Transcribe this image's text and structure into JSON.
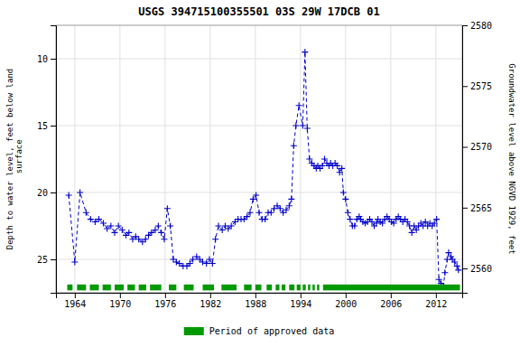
{
  "chart_data": {
    "type": "line",
    "title": "USGS 394715100355501 03S 29W 17DCB 01",
    "y_label": "Depth to water level, feet below land\n surface",
    "y2_label": "Groundwater level above NGVD 1929, feet",
    "xlim": [
      1961.5,
      2015.5
    ],
    "xticks": [
      1964,
      1970,
      1976,
      1982,
      1988,
      1994,
      2000,
      2006,
      2012
    ],
    "ylim": [
      27.5,
      7.5
    ],
    "yticks": [
      10,
      15,
      20,
      25
    ],
    "y2lim": [
      2558.0,
      2580.0
    ],
    "y2ticks": [
      2560,
      2565,
      2570,
      2575,
      2580
    ],
    "grid": true,
    "x": [
      1963.2,
      1964.0,
      1964.7,
      1965.5,
      1966.1,
      1966.7,
      1967.2,
      1967.8,
      1968.3,
      1968.8,
      1969.3,
      1969.8,
      1970.3,
      1970.8,
      1971.2,
      1971.7,
      1972.1,
      1972.5,
      1973.0,
      1973.4,
      1973.8,
      1974.2,
      1974.7,
      1975.1,
      1975.5,
      1975.9,
      1976.3,
      1976.7,
      1977.1,
      1977.5,
      1977.9,
      1978.4,
      1978.9,
      1979.3,
      1979.7,
      1980.2,
      1980.6,
      1981.0,
      1981.5,
      1981.9,
      1982.3,
      1982.7,
      1983.1,
      1983.6,
      1984.0,
      1984.4,
      1984.8,
      1985.3,
      1985.7,
      1986.1,
      1986.5,
      1986.9,
      1987.3,
      1987.7,
      1988.1,
      1988.5,
      1988.9,
      1989.3,
      1989.7,
      1990.1,
      1990.5,
      1990.9,
      1991.3,
      1991.7,
      1992.1,
      1992.5,
      1992.8,
      1993.1,
      1993.4,
      1993.8,
      1994.3,
      1994.6,
      1994.9,
      1995.2,
      1995.5,
      1995.8,
      1996.1,
      1996.3,
      1996.6,
      1996.9,
      1997.2,
      1997.5,
      1997.8,
      1998.0,
      1998.3,
      1998.6,
      1998.9,
      1999.2,
      1999.5,
      1999.7,
      2000.0,
      2000.3,
      2000.6,
      2000.9,
      2001.2,
      2001.5,
      2001.8,
      2002.0,
      2002.3,
      2002.6,
      2002.9,
      2003.2,
      2003.5,
      2003.8,
      2004.1,
      2004.3,
      2004.6,
      2004.9,
      2005.2,
      2005.5,
      2005.8,
      2006.1,
      2006.4,
      2006.7,
      2007.0,
      2007.3,
      2007.6,
      2007.9,
      2008.2,
      2008.5,
      2008.8,
      2009.1,
      2009.4,
      2009.7,
      2010.0,
      2010.3,
      2010.6,
      2010.9,
      2011.2,
      2011.5,
      2011.8,
      2012.1,
      2012.4,
      2012.7,
      2013.0,
      2013.2,
      2013.5,
      2013.7,
      2014.0,
      2014.2,
      2014.5,
      2014.8,
      2015.0
    ],
    "series": [
      {
        "color": "#0000cc",
        "marker": "plus",
        "line_style": "dashed",
        "values": [
          20.2,
          25.2,
          20.0,
          21.5,
          22.0,
          22.2,
          22.0,
          22.3,
          22.7,
          22.5,
          23.0,
          22.5,
          22.8,
          23.2,
          23.0,
          23.5,
          23.3,
          23.5,
          23.7,
          23.5,
          23.2,
          23.0,
          22.8,
          22.5,
          23.0,
          23.5,
          21.2,
          22.5,
          25.0,
          25.2,
          25.3,
          25.5,
          25.5,
          25.3,
          25.0,
          24.8,
          25.0,
          25.2,
          25.3,
          25.0,
          25.3,
          23.5,
          22.5,
          22.8,
          22.5,
          22.7,
          22.5,
          22.2,
          22.0,
          22.0,
          22.0,
          21.8,
          21.5,
          20.5,
          20.2,
          21.5,
          22.0,
          22.0,
          21.5,
          21.5,
          21.2,
          21.0,
          21.2,
          21.5,
          21.3,
          21.0,
          20.5,
          16.5,
          15.0,
          13.5,
          15.0,
          9.5,
          15.2,
          17.5,
          17.8,
          18.0,
          18.2,
          18.0,
          18.2,
          18.0,
          17.5,
          17.8,
          18.0,
          17.8,
          18.0,
          17.8,
          18.0,
          18.5,
          18.2,
          20.0,
          20.5,
          21.5,
          22.0,
          22.5,
          22.5,
          22.0,
          21.8,
          22.0,
          22.2,
          22.3,
          22.2,
          22.0,
          22.2,
          22.5,
          22.3,
          22.0,
          22.2,
          22.3,
          22.0,
          21.8,
          22.0,
          22.2,
          22.3,
          22.0,
          21.8,
          22.0,
          22.2,
          22.0,
          22.2,
          22.5,
          23.0,
          22.5,
          22.8,
          22.5,
          22.3,
          22.5,
          22.2,
          22.5,
          22.3,
          22.5,
          22.3,
          22.0,
          26.5,
          26.8,
          27.0,
          26.0,
          25.0,
          24.5,
          24.8,
          25.0,
          25.2,
          25.5,
          25.8
        ]
      },
      {
        "name": "Period of approved data",
        "type": "span",
        "color": "#009900",
        "values": [
          [
            1963.0,
            1963.7
          ],
          [
            1964.3,
            1965.5
          ],
          [
            1966.0,
            1967.2
          ],
          [
            1967.7,
            1968.8
          ],
          [
            1969.3,
            1970.5
          ],
          [
            1971.0,
            1972.0
          ],
          [
            1972.5,
            1973.5
          ],
          [
            1974.0,
            1975.5
          ],
          [
            1976.5,
            1977.5
          ],
          [
            1978.5,
            1979.8
          ],
          [
            1981.0,
            1982.5
          ],
          [
            1983.5,
            1985.5
          ],
          [
            1986.5,
            1987.5
          ],
          [
            1988.0,
            1988.8
          ],
          [
            1989.5,
            1990.2
          ],
          [
            1990.7,
            1991.2
          ],
          [
            1991.5,
            1992.0
          ],
          [
            1992.5,
            1993.2
          ],
          [
            1993.5,
            1994.0
          ],
          [
            1994.3,
            1994.7
          ],
          [
            1995.0,
            1995.3
          ],
          [
            1995.6,
            1995.9
          ],
          [
            1996.2,
            1996.5
          ],
          [
            1997.0,
            2015.2
          ]
        ]
      }
    ]
  }
}
